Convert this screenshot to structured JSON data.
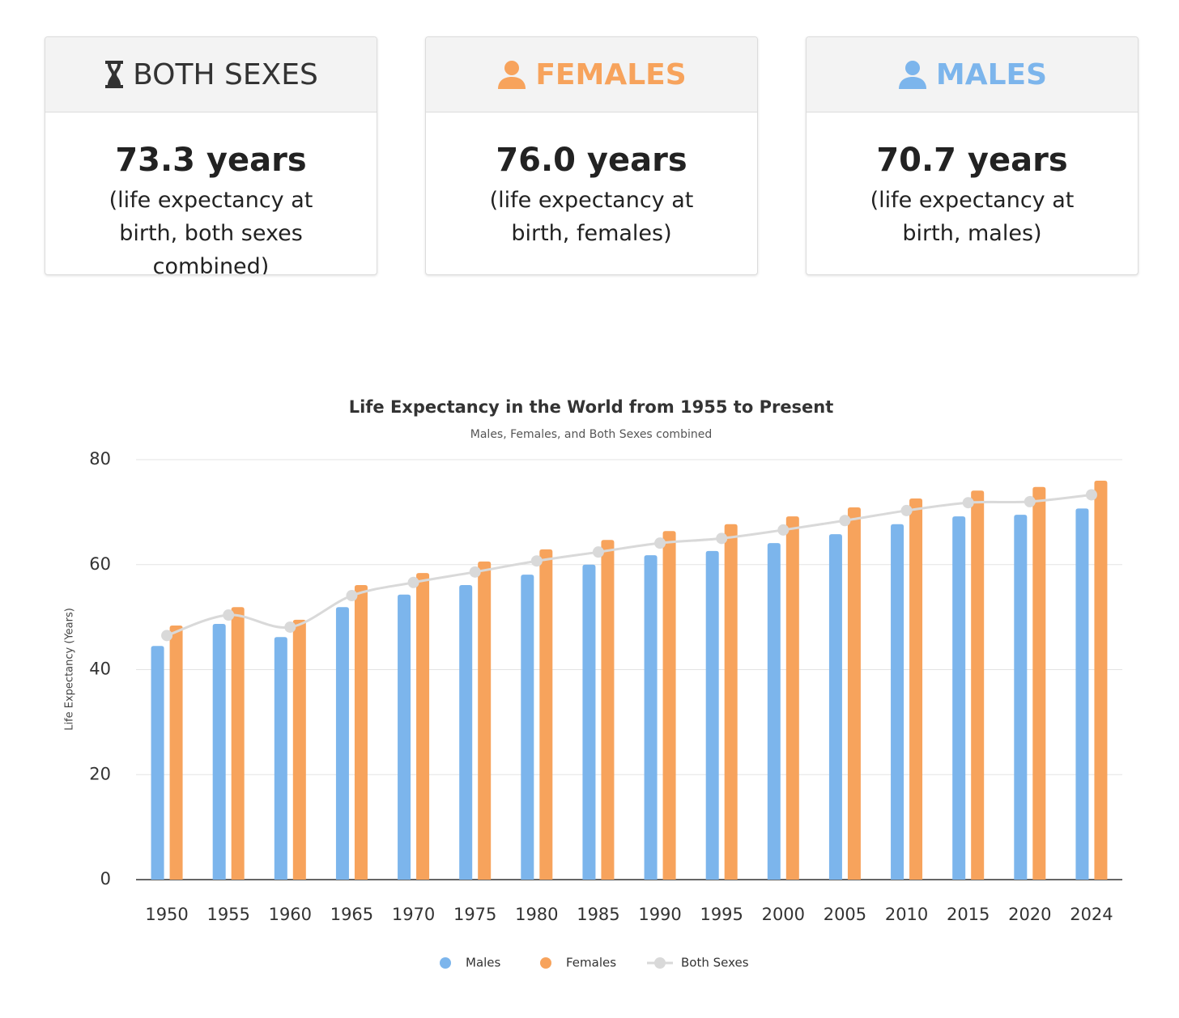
{
  "cards": [
    {
      "title": "BOTH SEXES",
      "value": "73.3 years",
      "description": "(life expectancy at birth, both sexes combined)"
    },
    {
      "title": "FEMALES",
      "value": "76.0 years",
      "description": "(life expectancy at birth, females)"
    },
    {
      "title": "MALES",
      "value": "70.7 years",
      "description": "(life expectancy at birth, males)"
    }
  ],
  "chart_data": {
    "type": "bar",
    "title": "Life Expectancy in the World from 1955 to Present",
    "subtitle": "Males, Females, and Both Sexes combined",
    "y_label": "Life Expectancy (Years)",
    "categories": [
      "1950",
      "1955",
      "1960",
      "1965",
      "1970",
      "1975",
      "1980",
      "1985",
      "1990",
      "1995",
      "2000",
      "2005",
      "2010",
      "2015",
      "2020",
      "2024"
    ],
    "series": [
      {
        "name": "Males",
        "color": "#7cb5ec",
        "type": "bar",
        "values": [
          44.5,
          48.7,
          46.2,
          51.9,
          54.3,
          56.1,
          58.1,
          60.0,
          61.8,
          62.6,
          64.1,
          65.8,
          67.7,
          69.2,
          69.5,
          70.7
        ]
      },
      {
        "name": "Females",
        "color": "#f7a35c",
        "type": "bar",
        "values": [
          48.4,
          51.9,
          49.5,
          56.1,
          58.4,
          60.6,
          62.9,
          64.7,
          66.4,
          67.7,
          69.2,
          70.9,
          72.6,
          74.1,
          74.8,
          76.0
        ]
      },
      {
        "name": "Both Sexes",
        "color": "#d9d9d9",
        "type": "line",
        "values": [
          46.5,
          50.4,
          48.1,
          54.1,
          56.6,
          58.6,
          60.7,
          62.4,
          64.1,
          65.0,
          66.6,
          68.4,
          70.3,
          71.8,
          72.0,
          73.3
        ]
      }
    ],
    "ylim": [
      0,
      80
    ],
    "yticks": [
      0,
      20,
      40,
      60,
      80
    ],
    "grid": true,
    "legend": "bottom"
  }
}
